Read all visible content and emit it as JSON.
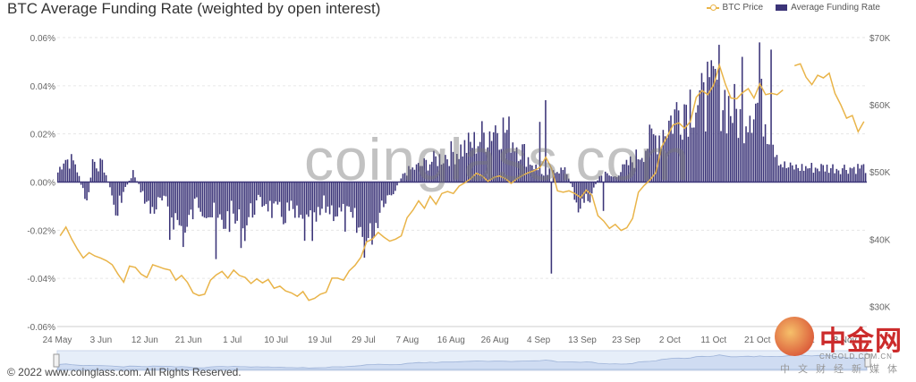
{
  "title": "BTC Average Funding Rate  (weighted by open interest)",
  "legend": {
    "price_label": "BTC Price",
    "funding_label": "Average Funding Rate"
  },
  "footer": "© 2022 www.coinglass.com. All Rights Reserved.",
  "watermark": "coinglass.com",
  "logo": {
    "main": "中金网",
    "url": "CNGOLD.COM.CN",
    "sub": "中文财经新媒体"
  },
  "colors": {
    "price": "#e9b449",
    "funding": "#3b3478",
    "grid": "#e6e6e6",
    "axis_text": "#666666"
  },
  "chart_data": {
    "type": "bar",
    "title": "BTC Average Funding Rate  (weighted by open interest)",
    "x_tick_labels": [
      "24 May",
      "3 Jun",
      "12 Jun",
      "21 Jun",
      "1 Jul",
      "10 Jul",
      "19 Jul",
      "29 Jul",
      "7 Aug",
      "16 Aug",
      "26 Aug",
      "4 Sep",
      "13 Sep",
      "23 Sep",
      "2 Oct",
      "11 Oct",
      "21 Oct",
      "30 Oct",
      "8 Nov"
    ],
    "y_left": {
      "ylim": [
        -0.06,
        0.06
      ],
      "ticks": [
        -0.06,
        -0.04,
        -0.02,
        0,
        0.02,
        0.04,
        0.06
      ],
      "tick_labels": [
        "-0.06%",
        "-0.04%",
        "-0.02%",
        "0.00%",
        "0.02%",
        "0.04%",
        "0.06%"
      ]
    },
    "y_right": {
      "ylim": [
        27000,
        70000
      ],
      "ticks": [
        30000,
        40000,
        50000,
        60000,
        70000
      ],
      "tick_labels": [
        "$30K",
        "$40K",
        "$50K",
        "$60K",
        "$70K"
      ]
    },
    "grid": true,
    "legend_position": "top-right",
    "series": [
      {
        "name": "Average Funding Rate",
        "type": "bar",
        "axis": "left",
        "anchors": [
          [
            0,
            0.004
          ],
          [
            1,
            0.01
          ],
          [
            3,
            0.008
          ],
          [
            5,
            -0.01
          ],
          [
            6,
            0.009
          ],
          [
            8,
            0.006
          ],
          [
            10,
            -0.012
          ],
          [
            11,
            -0.006
          ],
          [
            13,
            0.004
          ],
          [
            16,
            -0.012
          ],
          [
            18,
            -0.008
          ],
          [
            20,
            -0.014
          ],
          [
            22,
            -0.022
          ],
          [
            24,
            -0.008
          ],
          [
            26,
            -0.012
          ],
          [
            28,
            -0.018
          ],
          [
            30,
            -0.014
          ],
          [
            32,
            -0.02
          ],
          [
            34,
            -0.01
          ],
          [
            36,
            -0.008
          ],
          [
            38,
            -0.015
          ],
          [
            40,
            -0.012
          ],
          [
            42,
            -0.018
          ],
          [
            44,
            -0.022
          ],
          [
            46,
            -0.01
          ],
          [
            48,
            -0.012
          ],
          [
            50,
            -0.016
          ],
          [
            52,
            -0.02
          ],
          [
            54,
            -0.026
          ],
          [
            56,
            -0.008
          ],
          [
            58,
            -0.004
          ],
          [
            60,
            0.004
          ],
          [
            62,
            0.006
          ],
          [
            64,
            0.008
          ],
          [
            66,
            0.01
          ],
          [
            68,
            0.012
          ],
          [
            70,
            0.014
          ],
          [
            72,
            0.016
          ],
          [
            74,
            0.02
          ],
          [
            76,
            0.024
          ],
          [
            78,
            0.02
          ],
          [
            80,
            0.014
          ],
          [
            82,
            0.008
          ],
          [
            84,
            0.002
          ],
          [
            86,
            0.006
          ],
          [
            88,
            0.004
          ],
          [
            90,
            -0.01
          ],
          [
            92,
            -0.006
          ],
          [
            94,
            0.004
          ],
          [
            96,
            0.002
          ],
          [
            98,
            0.006
          ],
          [
            100,
            0.01
          ],
          [
            102,
            0.016
          ],
          [
            104,
            0.02
          ],
          [
            106,
            0.026
          ],
          [
            108,
            0.032
          ],
          [
            110,
            0.036
          ],
          [
            112,
            0.03
          ],
          [
            114,
            0.04
          ],
          [
            116,
            0.032
          ],
          [
            118,
            0.026
          ],
          [
            120,
            0.034
          ],
          [
            122,
            0.03
          ],
          [
            124,
            0.016
          ],
          [
            125,
            0.008
          ],
          [
            126,
            0.006
          ]
        ],
        "spikes": [
          [
            10,
            -0.014
          ],
          [
            19,
            -0.024
          ],
          [
            27,
            -0.032
          ],
          [
            54,
            -0.026
          ],
          [
            83,
            0.025
          ],
          [
            84,
            0.034
          ],
          [
            85,
            -0.038
          ],
          [
            94,
            -0.012
          ],
          [
            112,
            0.05
          ],
          [
            114,
            0.057
          ],
          [
            118,
            0.052
          ],
          [
            121,
            0.058
          ],
          [
            123,
            0.055
          ]
        ]
      },
      {
        "name": "BTC Price",
        "type": "line",
        "axis": "right",
        "values": [
          [
            0,
            40500
          ],
          [
            1,
            41800
          ],
          [
            2,
            40000
          ],
          [
            3,
            38500
          ],
          [
            4,
            37200
          ],
          [
            5,
            38000
          ],
          [
            6,
            37500
          ],
          [
            7,
            37200
          ],
          [
            8,
            36800
          ],
          [
            9,
            36200
          ],
          [
            10,
            34800
          ],
          [
            11,
            33600
          ],
          [
            12,
            36000
          ],
          [
            13,
            35800
          ],
          [
            14,
            34800
          ],
          [
            15,
            34300
          ],
          [
            16,
            36200
          ],
          [
            17,
            35900
          ],
          [
            18,
            35600
          ],
          [
            19,
            35400
          ],
          [
            20,
            33900
          ],
          [
            21,
            34600
          ],
          [
            22,
            33600
          ],
          [
            23,
            32000
          ],
          [
            24,
            31600
          ],
          [
            25,
            31800
          ],
          [
            26,
            33900
          ],
          [
            27,
            34700
          ],
          [
            28,
            35200
          ],
          [
            29,
            34200
          ],
          [
            30,
            35400
          ],
          [
            31,
            34600
          ],
          [
            32,
            34300
          ],
          [
            33,
            33400
          ],
          [
            34,
            34100
          ],
          [
            35,
            33500
          ],
          [
            36,
            34000
          ],
          [
            37,
            32700
          ],
          [
            38,
            33000
          ],
          [
            39,
            32300
          ],
          [
            40,
            32000
          ],
          [
            41,
            31500
          ],
          [
            42,
            32200
          ],
          [
            43,
            30900
          ],
          [
            44,
            31200
          ],
          [
            45,
            31800
          ],
          [
            46,
            32100
          ],
          [
            47,
            34200
          ],
          [
            48,
            34200
          ],
          [
            49,
            33900
          ],
          [
            50,
            35300
          ],
          [
            51,
            36100
          ],
          [
            52,
            37300
          ],
          [
            53,
            39600
          ],
          [
            54,
            40000
          ],
          [
            55,
            41000
          ],
          [
            56,
            40300
          ],
          [
            57,
            39700
          ],
          [
            58,
            40000
          ],
          [
            59,
            40500
          ],
          [
            60,
            43200
          ],
          [
            61,
            44300
          ],
          [
            62,
            45700
          ],
          [
            63,
            44600
          ],
          [
            64,
            46400
          ],
          [
            65,
            45200
          ],
          [
            66,
            46800
          ],
          [
            67,
            47100
          ],
          [
            68,
            46800
          ],
          [
            69,
            47900
          ],
          [
            70,
            48400
          ],
          [
            71,
            49000
          ],
          [
            72,
            49800
          ],
          [
            73,
            49400
          ],
          [
            74,
            48600
          ],
          [
            75,
            49200
          ],
          [
            76,
            49400
          ],
          [
            77,
            49000
          ],
          [
            78,
            48300
          ],
          [
            79,
            49000
          ],
          [
            80,
            49500
          ],
          [
            81,
            49900
          ],
          [
            82,
            50200
          ],
          [
            83,
            50700
          ],
          [
            84,
            52200
          ],
          [
            85,
            50500
          ],
          [
            86,
            47200
          ],
          [
            87,
            47000
          ],
          [
            88,
            47200
          ],
          [
            89,
            46800
          ],
          [
            90,
            46200
          ],
          [
            91,
            47300
          ],
          [
            92,
            46500
          ],
          [
            93,
            43500
          ],
          [
            94,
            42700
          ],
          [
            95,
            41600
          ],
          [
            96,
            42200
          ],
          [
            97,
            41300
          ],
          [
            98,
            41700
          ],
          [
            99,
            43100
          ],
          [
            100,
            47000
          ],
          [
            101,
            48000
          ],
          [
            102,
            48800
          ],
          [
            103,
            49900
          ],
          [
            104,
            53700
          ],
          [
            105,
            55300
          ],
          [
            106,
            57000
          ],
          [
            107,
            57300
          ],
          [
            108,
            56500
          ],
          [
            109,
            57500
          ],
          [
            110,
            61100
          ],
          [
            111,
            62100
          ],
          [
            112,
            61500
          ],
          [
            113,
            62900
          ],
          [
            114,
            65900
          ],
          [
            115,
            63200
          ],
          [
            116,
            61000
          ],
          [
            117,
            60900
          ],
          [
            118,
            61800
          ],
          [
            119,
            62400
          ],
          [
            120,
            61000
          ],
          [
            121,
            63100
          ],
          [
            122,
            61500
          ],
          [
            123,
            61700
          ],
          [
            124,
            61500
          ],
          [
            125,
            62200
          ],
          [
            126,
            null
          ],
          [
            127,
            65800
          ],
          [
            128,
            66100
          ],
          [
            129,
            64100
          ],
          [
            130,
            63000
          ],
          [
            131,
            64400
          ],
          [
            132,
            64000
          ],
          [
            133,
            64700
          ],
          [
            134,
            61700
          ],
          [
            135,
            60000
          ],
          [
            136,
            58000
          ],
          [
            137,
            58400
          ],
          [
            138,
            56000
          ],
          [
            139,
            57500
          ]
        ]
      }
    ]
  }
}
